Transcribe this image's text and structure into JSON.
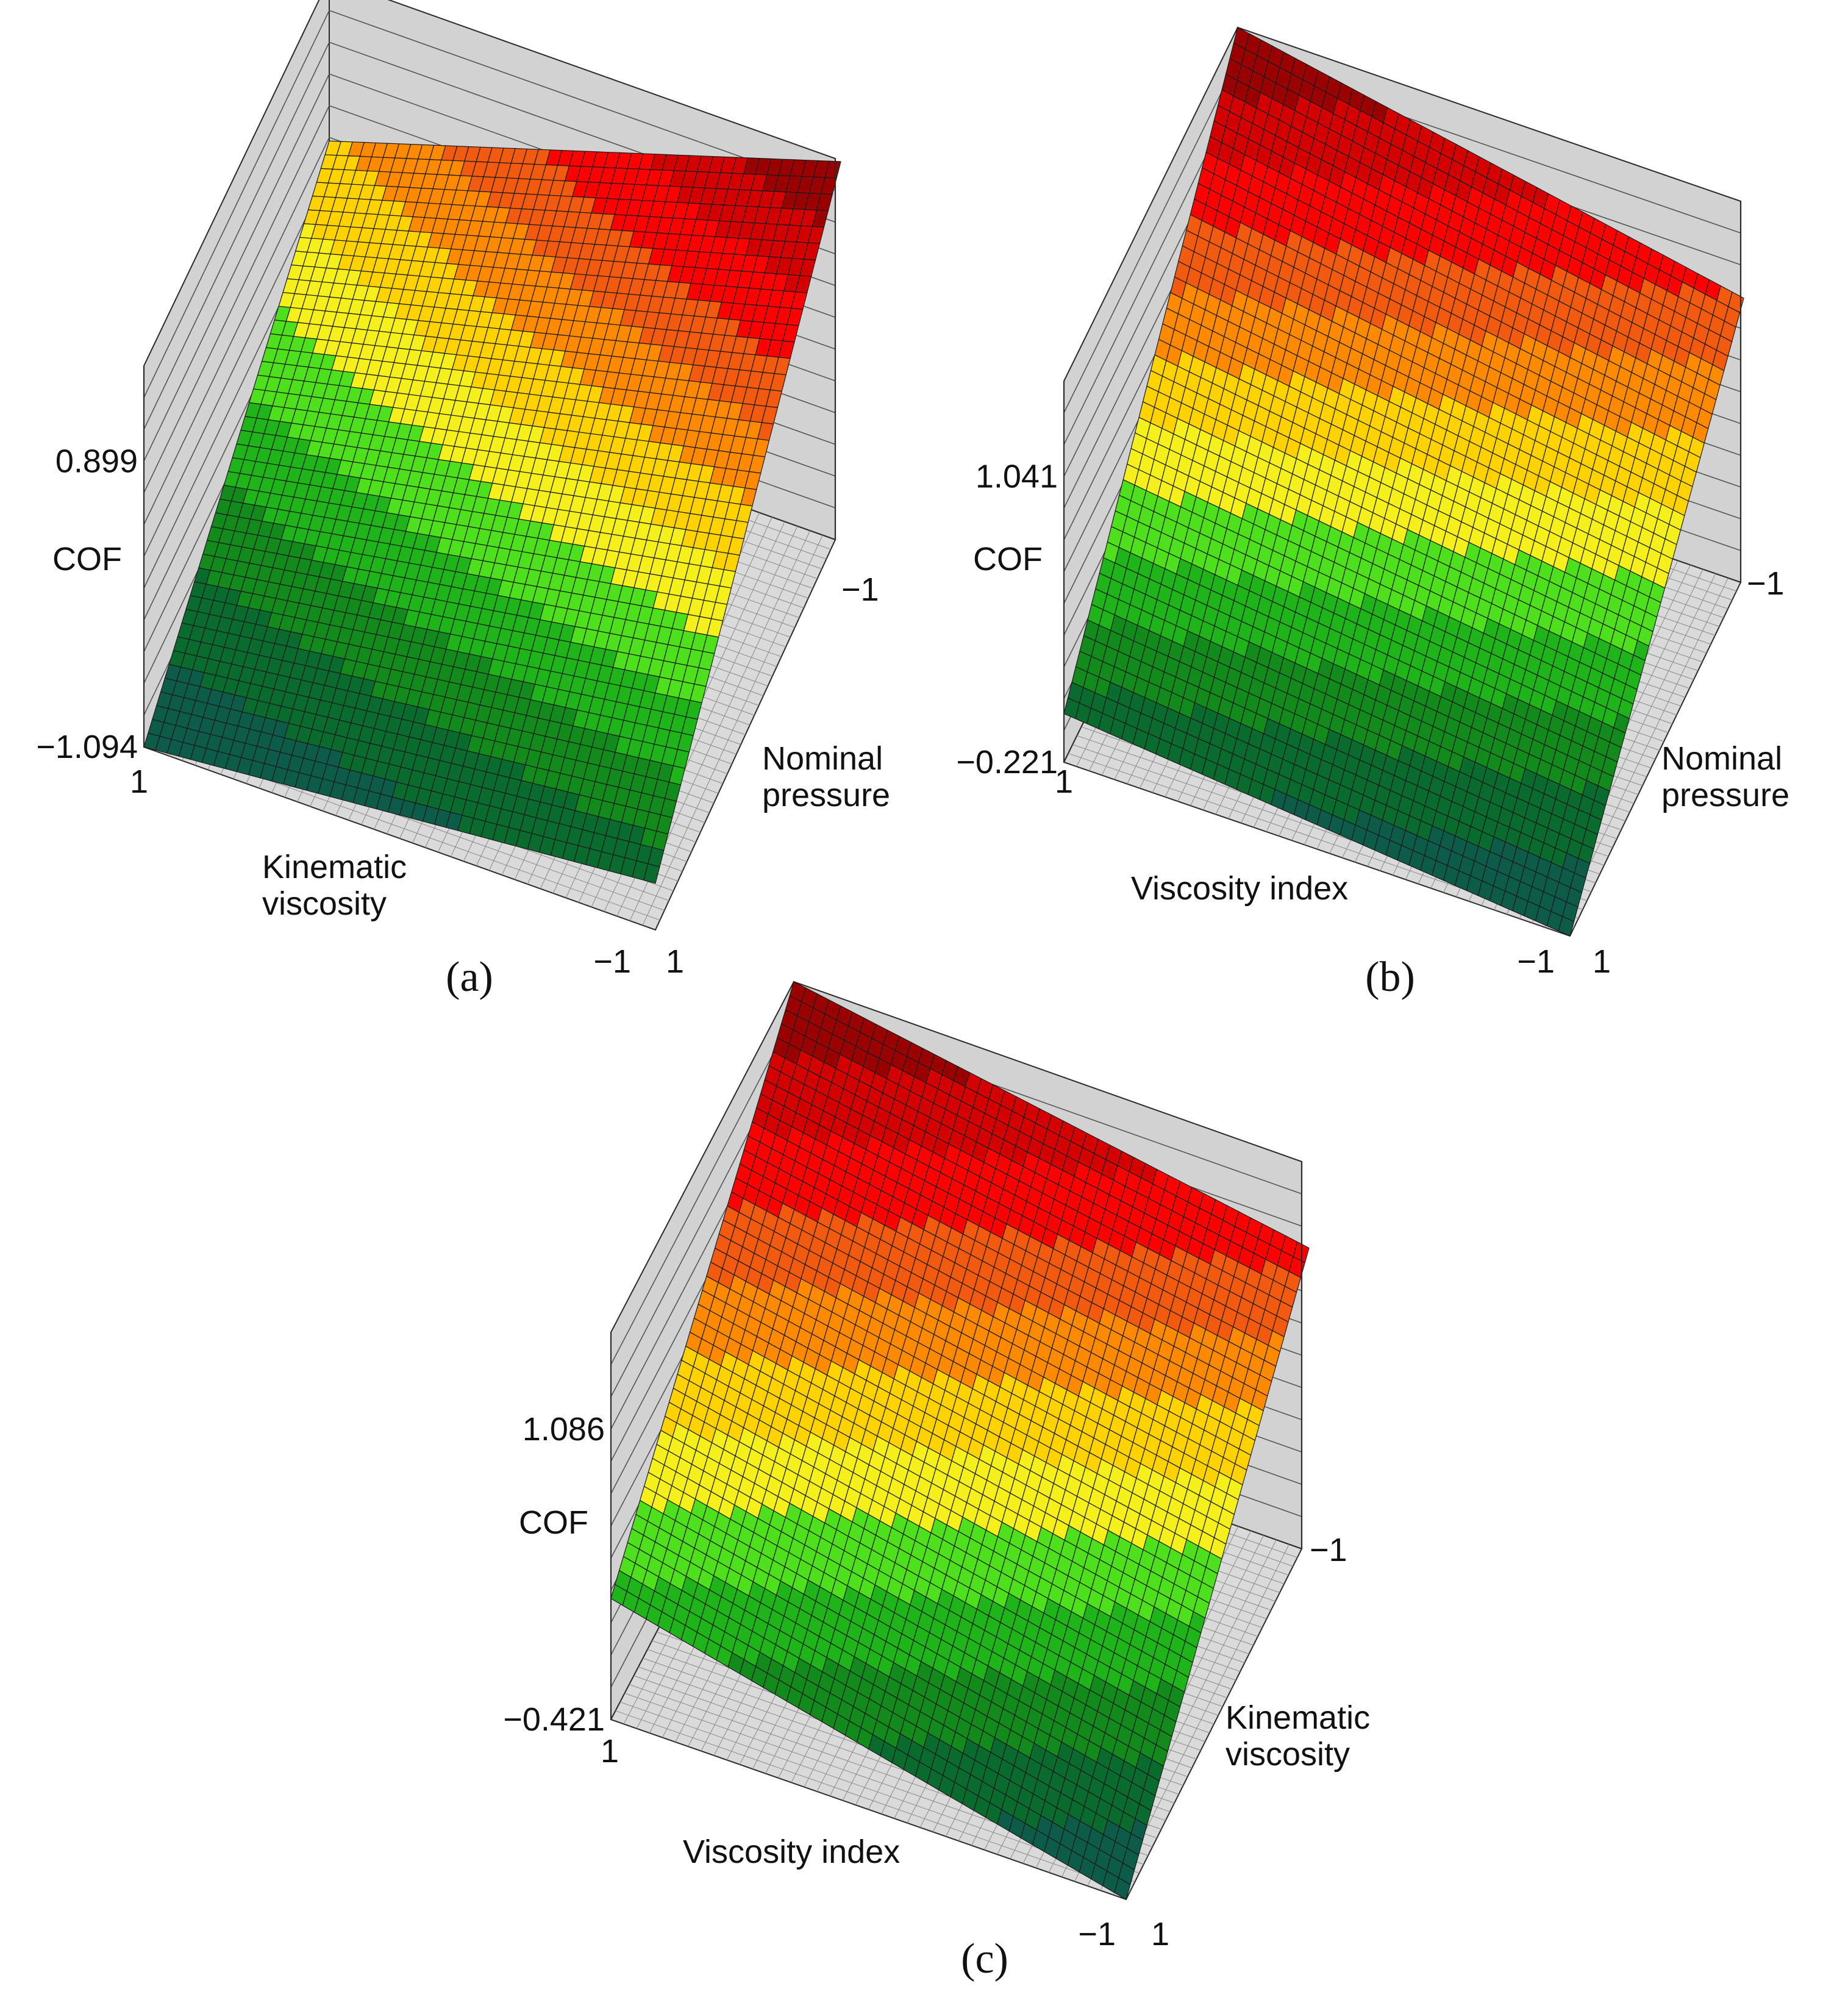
{
  "chart_data": [
    {
      "type": "surface3d",
      "panel_label": "(a)",
      "z_label": "COF",
      "z_range": [
        -1.094,
        0.899
      ],
      "z_tick_labels": [
        "0.899",
        "-1.094"
      ],
      "x_label": "Kinematic viscosity",
      "x_label_lines": [
        "Kinematic",
        "viscosity"
      ],
      "x_ticks": [
        "1",
        "-1"
      ],
      "y_label": "Nominal pressure",
      "y_label_lines": [
        "Nominal",
        "pressure"
      ],
      "y_ticks": [
        "1",
        "-1"
      ],
      "grid": true,
      "corner_values": {
        "front": -1.094,
        "right": -0.85,
        "left": 0.05,
        "back": 0.899
      }
    },
    {
      "type": "surface3d",
      "panel_label": "(b)",
      "z_label": "COF",
      "z_range": [
        -0.221,
        1.041
      ],
      "z_tick_labels": [
        "1.041",
        "-0.221"
      ],
      "x_label": "Viscosity index",
      "x_label_lines": [
        "Viscosity index"
      ],
      "x_ticks": [
        "1",
        "-1"
      ],
      "y_label": "Nominal pressure",
      "y_label_lines": [
        "Nominal",
        "pressure"
      ],
      "y_ticks": [
        "1",
        "-1"
      ],
      "grid": true,
      "corner_values": {
        "front": -0.06,
        "right": -0.221,
        "left": 1.041,
        "back": 0.72
      }
    },
    {
      "type": "surface3d",
      "panel_label": "(c)",
      "z_label": "COF",
      "z_range": [
        -0.421,
        1.086
      ],
      "z_tick_labels": [
        "1.086",
        "-0.421"
      ],
      "x_label": "Viscosity index",
      "x_label_lines": [
        "Viscosity index"
      ],
      "x_ticks": [
        "1",
        "-1"
      ],
      "y_label": "Kinematic viscosity",
      "y_label_lines": [
        "Kinematic",
        "viscosity"
      ],
      "y_ticks": [
        "1",
        "-1"
      ],
      "grid": true,
      "corner_values": {
        "front": 0.05,
        "right": -0.421,
        "left": 1.086,
        "back": 0.75
      }
    }
  ],
  "colors": {
    "wall_fill": "#d2d2d2",
    "floor_fill": "#dadada",
    "edge_color": "#2b2b2b",
    "colormap": [
      "#0d5c4a",
      "#0a6b2e",
      "#138a1c",
      "#1fb41a",
      "#4ee01d",
      "#f5f01b",
      "#ffd200",
      "#ff8a00",
      "#f25a10",
      "#ff0000",
      "#d40000",
      "#9a0000"
    ]
  }
}
